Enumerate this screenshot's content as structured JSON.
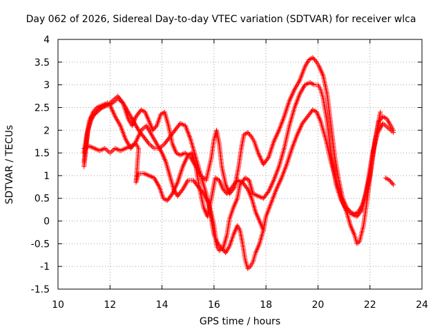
{
  "chart_data": {
    "type": "scatter",
    "title": "Day 062 of 2026, Sidereal Day-to-day VTEC variation (SDTVAR) for receiver wlca",
    "xlabel": "GPS time / hours",
    "ylabel": "SDTVAR / TECUs",
    "xlim": [
      10,
      24
    ],
    "ylim": [
      -1.5,
      4
    ],
    "grid": true,
    "marker": "plus",
    "color": "#ff0000",
    "xticks": [
      "10",
      "12",
      "14",
      "16",
      "18",
      "20",
      "22",
      "24"
    ],
    "yticks": [
      "-1.5",
      "-1",
      "-0.5",
      "0",
      "0.5",
      "1",
      "1.5",
      "2",
      "2.5",
      "3",
      "3.5",
      "4"
    ],
    "series": [
      {
        "name": "series-1",
        "points": [
          [
            11.0,
            1.3
          ],
          [
            11.1,
            1.8
          ],
          [
            11.2,
            2.2
          ],
          [
            11.35,
            2.4
          ],
          [
            11.5,
            2.5
          ],
          [
            11.7,
            2.55
          ],
          [
            11.9,
            2.6
          ],
          [
            12.0,
            2.55
          ],
          [
            12.2,
            2.3
          ],
          [
            12.4,
            2.1
          ],
          [
            12.6,
            1.8
          ],
          [
            12.8,
            1.6
          ],
          [
            13.0,
            1.75
          ],
          [
            13.2,
            2.0
          ],
          [
            13.4,
            2.1
          ],
          [
            13.6,
            1.9
          ],
          [
            13.8,
            1.7
          ],
          [
            14.0,
            1.5
          ],
          [
            14.15,
            1.3
          ],
          [
            14.3,
            1.0
          ],
          [
            14.45,
            0.7
          ],
          [
            14.6,
            0.55
          ],
          [
            14.8,
            0.7
          ],
          [
            15.0,
            0.9
          ],
          [
            15.2,
            0.9
          ],
          [
            15.4,
            0.75
          ],
          [
            15.6,
            0.6
          ],
          [
            15.8,
            0.4
          ],
          [
            16.0,
            -0.1
          ],
          [
            16.1,
            -0.55
          ],
          [
            16.2,
            -0.65
          ],
          [
            16.35,
            -0.6
          ],
          [
            16.5,
            -0.3
          ],
          [
            16.6,
            0.05
          ],
          [
            16.75,
            0.3
          ],
          [
            16.9,
            0.5
          ],
          [
            17.0,
            0.8
          ],
          [
            17.2,
            0.95
          ],
          [
            17.35,
            0.9
          ],
          [
            17.5,
            0.6
          ],
          [
            17.7,
            0.55
          ],
          [
            17.9,
            0.5
          ],
          [
            18.1,
            0.65
          ],
          [
            18.3,
            0.9
          ],
          [
            18.5,
            1.2
          ],
          [
            18.7,
            1.6
          ],
          [
            18.9,
            2.1
          ],
          [
            19.1,
            2.5
          ],
          [
            19.3,
            2.8
          ],
          [
            19.5,
            3.0
          ],
          [
            19.7,
            3.05
          ],
          [
            19.85,
            3.0
          ],
          [
            20.0,
            3.0
          ],
          [
            20.1,
            2.9
          ],
          [
            20.2,
            2.7
          ],
          [
            20.35,
            2.2
          ],
          [
            20.5,
            1.5
          ],
          [
            20.7,
            0.8
          ],
          [
            20.9,
            0.45
          ],
          [
            21.1,
            0.25
          ],
          [
            21.3,
            0.15
          ],
          [
            21.5,
            0.1
          ],
          [
            21.7,
            0.25
          ],
          [
            21.9,
            0.8
          ],
          [
            22.1,
            1.5
          ],
          [
            22.3,
            1.95
          ],
          [
            22.5,
            2.15
          ],
          [
            22.7,
            2.05
          ],
          [
            22.9,
            1.95
          ]
        ]
      },
      {
        "name": "series-2",
        "points": [
          [
            11.0,
            1.2
          ],
          [
            11.15,
            2.0
          ],
          [
            11.3,
            2.3
          ],
          [
            11.5,
            2.4
          ],
          [
            11.7,
            2.5
          ],
          [
            11.9,
            2.55
          ],
          [
            12.1,
            2.6
          ],
          [
            12.3,
            2.7
          ],
          [
            12.5,
            2.6
          ],
          [
            12.7,
            2.4
          ],
          [
            12.9,
            2.2
          ],
          [
            13.1,
            2.0
          ],
          [
            13.3,
            1.85
          ],
          [
            13.5,
            1.7
          ],
          [
            13.7,
            1.6
          ],
          [
            13.9,
            1.6
          ],
          [
            14.1,
            1.7
          ],
          [
            14.3,
            1.85
          ],
          [
            14.5,
            2.0
          ],
          [
            14.7,
            2.15
          ],
          [
            14.9,
            2.1
          ],
          [
            15.1,
            1.8
          ],
          [
            15.3,
            1.4
          ],
          [
            15.5,
            1.0
          ],
          [
            15.7,
            0.6
          ],
          [
            15.85,
            0.2
          ],
          [
            16.0,
            -0.3
          ],
          [
            16.15,
            -0.5
          ],
          [
            16.3,
            -0.6
          ],
          [
            16.45,
            -0.7
          ],
          [
            16.6,
            -0.55
          ],
          [
            16.75,
            -0.3
          ],
          [
            16.9,
            -0.1
          ],
          [
            17.0,
            -0.2
          ],
          [
            17.1,
            -0.5
          ],
          [
            17.2,
            -0.85
          ],
          [
            17.3,
            -1.05
          ],
          [
            17.4,
            -1.0
          ],
          [
            17.5,
            -0.9
          ],
          [
            17.6,
            -0.7
          ],
          [
            17.75,
            -0.5
          ],
          [
            17.9,
            -0.2
          ],
          [
            18.0,
            0.1
          ],
          [
            18.2,
            0.4
          ],
          [
            18.4,
            0.7
          ],
          [
            18.6,
            0.95
          ],
          [
            18.8,
            1.25
          ],
          [
            19.0,
            1.6
          ],
          [
            19.2,
            1.9
          ],
          [
            19.4,
            2.15
          ],
          [
            19.6,
            2.3
          ],
          [
            19.8,
            2.45
          ],
          [
            19.95,
            2.4
          ],
          [
            20.1,
            2.2
          ],
          [
            20.3,
            1.8
          ],
          [
            20.5,
            1.3
          ],
          [
            20.7,
            0.9
          ],
          [
            20.9,
            0.5
          ],
          [
            21.1,
            0.2
          ],
          [
            21.25,
            -0.1
          ],
          [
            21.4,
            -0.3
          ],
          [
            21.5,
            -0.5
          ],
          [
            21.6,
            -0.45
          ],
          [
            21.75,
            -0.1
          ],
          [
            21.9,
            0.5
          ],
          [
            22.05,
            1.2
          ],
          [
            22.2,
            1.8
          ],
          [
            22.35,
            2.2
          ],
          [
            22.5,
            2.3
          ],
          [
            22.65,
            2.25
          ],
          [
            22.8,
            2.1
          ],
          [
            22.9,
            2.0
          ]
        ]
      },
      {
        "name": "series-3",
        "points": [
          [
            11.0,
            1.5
          ],
          [
            11.1,
            1.9
          ],
          [
            11.25,
            2.2
          ],
          [
            11.4,
            2.35
          ],
          [
            11.55,
            2.45
          ],
          [
            11.7,
            2.5
          ],
          [
            11.9,
            2.55
          ],
          [
            12.1,
            2.65
          ],
          [
            12.3,
            2.75
          ],
          [
            12.5,
            2.6
          ],
          [
            12.7,
            2.25
          ],
          [
            12.85,
            2.1
          ],
          [
            13.0,
            2.3
          ],
          [
            13.2,
            2.45
          ],
          [
            13.35,
            2.4
          ],
          [
            13.5,
            2.2
          ],
          [
            13.65,
            2.0
          ],
          [
            13.8,
            2.1
          ],
          [
            13.95,
            2.35
          ],
          [
            14.1,
            2.4
          ],
          [
            14.25,
            2.1
          ],
          [
            14.4,
            1.7
          ],
          [
            14.55,
            1.5
          ],
          [
            14.7,
            1.45
          ],
          [
            14.9,
            1.5
          ],
          [
            15.1,
            1.4
          ],
          [
            15.3,
            1.2
          ],
          [
            15.5,
            1.0
          ],
          [
            15.7,
            0.9
          ],
          [
            15.9,
            1.4
          ],
          [
            16.0,
            1.8
          ],
          [
            16.1,
            2.0
          ],
          [
            16.2,
            1.7
          ],
          [
            16.3,
            1.2
          ],
          [
            16.45,
            0.8
          ],
          [
            16.6,
            0.6
          ],
          [
            16.8,
            0.75
          ],
          [
            16.95,
            1.2
          ],
          [
            17.05,
            1.6
          ],
          [
            17.15,
            1.9
          ],
          [
            17.3,
            1.95
          ],
          [
            17.45,
            1.85
          ],
          [
            17.55,
            1.75
          ],
          [
            17.7,
            1.5
          ],
          [
            17.9,
            1.25
          ],
          [
            18.1,
            1.4
          ],
          [
            18.3,
            1.75
          ],
          [
            18.5,
            2.0
          ],
          [
            18.7,
            2.3
          ],
          [
            18.9,
            2.65
          ],
          [
            19.1,
            2.9
          ],
          [
            19.3,
            3.1
          ],
          [
            19.5,
            3.4
          ],
          [
            19.65,
            3.55
          ],
          [
            19.8,
            3.6
          ],
          [
            19.95,
            3.5
          ],
          [
            20.05,
            3.4
          ],
          [
            20.2,
            3.2
          ],
          [
            20.35,
            2.8
          ],
          [
            20.5,
            2.1
          ],
          [
            20.65,
            1.4
          ],
          [
            20.8,
            0.9
          ],
          [
            20.95,
            0.5
          ],
          [
            21.1,
            0.3
          ],
          [
            21.25,
            0.2
          ],
          [
            21.4,
            0.15
          ],
          [
            21.55,
            0.2
          ],
          [
            21.7,
            0.35
          ],
          [
            21.85,
            0.6
          ],
          [
            22.0,
            1.0
          ],
          [
            22.15,
            1.6
          ],
          [
            22.3,
            2.1
          ],
          [
            22.4,
            2.4
          ]
        ]
      },
      {
        "name": "series-4",
        "points": [
          [
            11.0,
            1.6
          ],
          [
            11.2,
            1.65
          ],
          [
            11.4,
            1.6
          ],
          [
            11.6,
            1.55
          ],
          [
            11.8,
            1.6
          ],
          [
            12.0,
            1.5
          ],
          [
            12.2,
            1.6
          ],
          [
            12.4,
            1.55
          ],
          [
            12.6,
            1.6
          ],
          [
            12.8,
            1.65
          ],
          [
            13.0,
            1.7
          ],
          [
            13.1,
            1.6
          ],
          [
            13.0,
            0.85
          ],
          [
            13.1,
            1.05
          ],
          [
            13.3,
            1.05
          ],
          [
            13.5,
            1.0
          ],
          [
            13.7,
            0.95
          ],
          [
            13.9,
            0.75
          ],
          [
            14.05,
            0.5
          ],
          [
            14.2,
            0.45
          ],
          [
            14.4,
            0.6
          ],
          [
            14.6,
            0.85
          ],
          [
            14.8,
            1.2
          ],
          [
            15.0,
            1.45
          ],
          [
            15.15,
            1.5
          ],
          [
            15.3,
            1.2
          ],
          [
            15.45,
            0.7
          ],
          [
            15.6,
            0.3
          ],
          [
            15.75,
            0.1
          ],
          [
            15.9,
            0.5
          ],
          [
            16.05,
            0.95
          ],
          [
            16.2,
            0.9
          ],
          [
            16.35,
            0.7
          ],
          [
            16.5,
            0.6
          ],
          [
            16.7,
            0.75
          ],
          [
            16.9,
            0.9
          ],
          [
            17.1,
            0.85
          ],
          [
            17.3,
            0.7
          ],
          [
            17.45,
            0.5
          ],
          [
            17.6,
            0.2
          ],
          [
            17.75,
            0.0
          ],
          [
            17.9,
            -0.2
          ],
          [
            22.6,
            0.95
          ],
          [
            22.75,
            0.9
          ],
          [
            22.9,
            0.8
          ]
        ]
      }
    ]
  },
  "text": {
    "title": "Day 062 of 2026, Sidereal Day-to-day VTEC variation (SDTVAR) for receiver wlca",
    "xlabel": "GPS time / hours",
    "ylabel": "SDTVAR / TECUs"
  }
}
